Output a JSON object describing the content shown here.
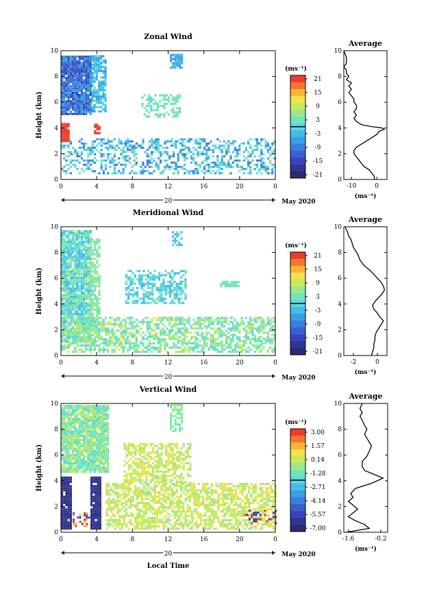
{
  "chart_data": [
    {
      "type": "heatmap",
      "title": "Zonal Wind",
      "ylabel": "Height (km)",
      "x_ticks": [
        "0",
        "4",
        "8",
        "12",
        "16",
        "20",
        "0"
      ],
      "y_ticks": [
        "0",
        "2",
        "4",
        "6",
        "8",
        "10"
      ],
      "xlim": [
        0,
        24
      ],
      "ylim": [
        0,
        10
      ],
      "date_label": "20",
      "month_label": "May 2020",
      "colorbar": {
        "unit": "(ms⁻¹)",
        "ticks": [
          "21",
          "15",
          "9",
          "3",
          "-3",
          "-9",
          "-15",
          "-21"
        ],
        "range": [
          -24,
          24
        ]
      },
      "profile": {
        "title": "Average",
        "x_ticks": [
          "-10",
          "0"
        ],
        "x_unit": "(ms⁻¹)",
        "xlim": [
          -13,
          4
        ],
        "y_ticks": [
          "0",
          "2",
          "4",
          "6",
          "8",
          "10"
        ],
        "x": [
          -1,
          -1,
          -2,
          -3,
          -5,
          -6,
          -7,
          -8,
          -9,
          -9,
          -8,
          -6,
          -4,
          -2,
          0,
          1,
          3,
          2,
          -2,
          -6,
          -8,
          -9,
          -8,
          -9,
          -8,
          -8,
          -9,
          -9,
          -10,
          -11,
          -10,
          -11,
          -10,
          -12,
          -11,
          -12,
          -12,
          -13,
          -12,
          -12,
          -13
        ],
        "y": [
          0.0,
          0.25,
          0.5,
          0.75,
          1.0,
          1.25,
          1.5,
          1.75,
          2.0,
          2.25,
          2.5,
          2.75,
          3.0,
          3.25,
          3.5,
          3.75,
          3.9,
          4.0,
          4.1,
          4.25,
          4.5,
          4.75,
          5.0,
          5.25,
          5.5,
          5.75,
          6.0,
          6.25,
          6.5,
          6.75,
          7.0,
          7.25,
          7.5,
          7.75,
          8.0,
          8.25,
          8.5,
          8.75,
          9.0,
          9.5,
          10.0
        ]
      }
    },
    {
      "type": "heatmap",
      "title": "Meridional Wind",
      "ylabel": "Height (km)",
      "x_ticks": [
        "0",
        "4",
        "8",
        "12",
        "16",
        "20",
        "0"
      ],
      "y_ticks": [
        "0",
        "2",
        "4",
        "6",
        "8",
        "10"
      ],
      "xlim": [
        0,
        24
      ],
      "ylim": [
        0,
        10
      ],
      "date_label": "20",
      "month_label": "May 2020",
      "colorbar": {
        "unit": "(ms⁻¹)",
        "ticks": [
          "21",
          "15",
          "9",
          "3",
          "-3",
          "-9",
          "-15",
          "-21"
        ],
        "range": [
          -24,
          24
        ]
      },
      "profile": {
        "title": "Average",
        "x_ticks": [
          "-2",
          "0"
        ],
        "x_unit": "(ms⁻¹)",
        "xlim": [
          -2.8,
          0.8
        ],
        "y_ticks": [
          "0",
          "2",
          "4",
          "6",
          "8",
          "10"
        ],
        "x": [
          -0.5,
          -0.4,
          -0.3,
          -0.3,
          -0.2,
          -0.2,
          -0.1,
          0.1,
          0.3,
          0.5,
          0.2,
          0.0,
          -0.3,
          -0.4,
          -0.2,
          0.1,
          0.4,
          0.6,
          0.5,
          0.3,
          0.0,
          -0.3,
          -0.6,
          -1.0,
          -1.3,
          -1.5,
          -1.6,
          -1.8,
          -2.0,
          -2.1,
          -2.2,
          -2.4,
          -2.5,
          -2.6,
          -2.7
        ],
        "y": [
          0.0,
          0.3,
          0.6,
          0.9,
          1.2,
          1.5,
          1.8,
          2.1,
          2.4,
          2.7,
          3.0,
          3.3,
          3.6,
          3.9,
          4.2,
          4.5,
          4.8,
          5.1,
          5.4,
          5.7,
          6.0,
          6.3,
          6.6,
          6.9,
          7.2,
          7.5,
          7.8,
          8.1,
          8.4,
          8.7,
          9.0,
          9.3,
          9.6,
          9.8,
          10.0
        ]
      }
    },
    {
      "type": "heatmap",
      "title": "Vertical Wind",
      "ylabel": "Height (km)",
      "xlabel": "Local Time",
      "x_ticks": [
        "0",
        "4",
        "8",
        "12",
        "16",
        "20",
        "0"
      ],
      "y_ticks": [
        "0",
        "2",
        "4",
        "6",
        "8",
        "10"
      ],
      "xlim": [
        0,
        24
      ],
      "ylim": [
        0,
        10
      ],
      "date_label": "20",
      "month_label": "May 2020",
      "colorbar": {
        "unit": "(ms⁻¹)",
        "ticks": [
          "3.00",
          "1.57",
          "0.14",
          "-1.28",
          "-2.71",
          "-4.14",
          "-5.57",
          "-7.00"
        ],
        "range": [
          -7.7,
          3.7
        ]
      },
      "profile": {
        "title": "Average",
        "x_ticks": [
          "-1.6",
          "-0.2"
        ],
        "x_unit": "(ms⁻¹)",
        "xlim": [
          -1.8,
          0.1
        ],
        "y_ticks": [
          "0",
          "2",
          "4",
          "6",
          "8",
          "10"
        ],
        "x": [
          -1.7,
          -0.7,
          -0.9,
          -1.3,
          -1.6,
          -1.4,
          -1.2,
          -1.4,
          -1.6,
          -1.4,
          -1.5,
          -1.3,
          -0.6,
          -0.1,
          -0.5,
          -0.9,
          -1.0,
          -1.0,
          -0.8,
          -0.7,
          -0.6,
          -0.7,
          -0.8,
          -0.9,
          -0.8,
          -0.9,
          -1.0,
          -1.1,
          -1.0,
          -1.1,
          -1.0
        ],
        "y": [
          0.0,
          0.3,
          0.6,
          0.9,
          1.2,
          1.5,
          1.8,
          2.1,
          2.4,
          2.7,
          3.0,
          3.4,
          3.8,
          4.2,
          4.5,
          4.8,
          5.1,
          5.5,
          5.9,
          6.3,
          6.7,
          7.0,
          7.3,
          7.6,
          8.0,
          8.3,
          8.7,
          9.0,
          9.3,
          9.6,
          10.0
        ]
      }
    }
  ]
}
